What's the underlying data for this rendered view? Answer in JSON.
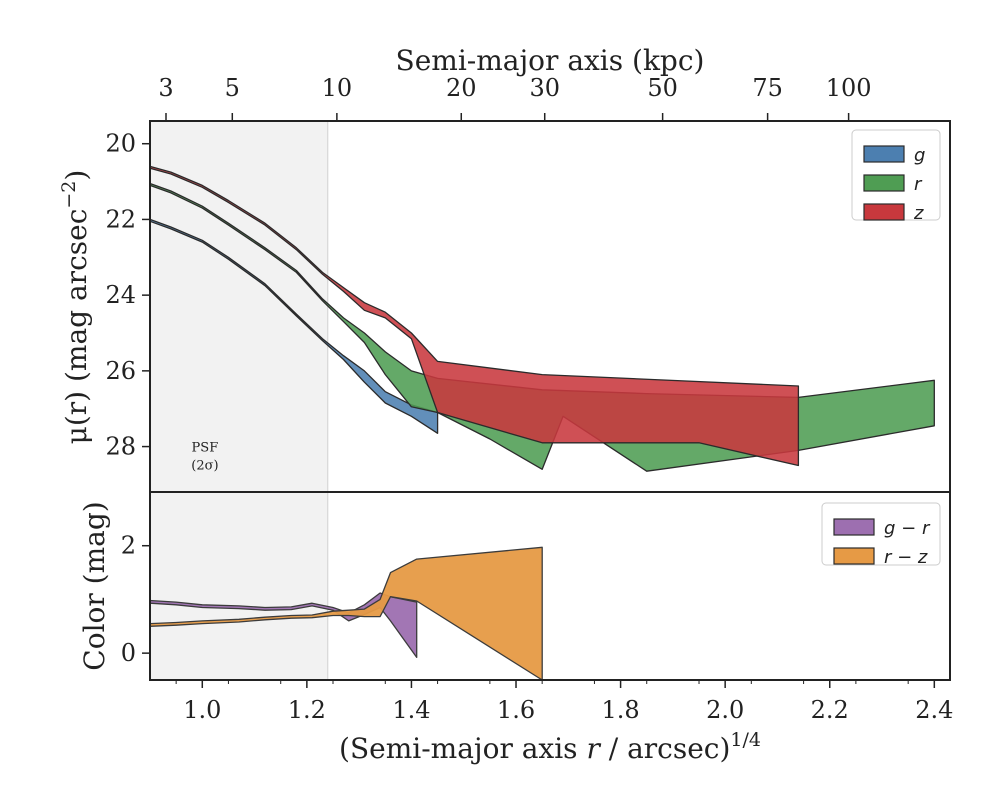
{
  "chart_data": [
    {
      "type": "area",
      "panel": "surface-brightness",
      "top_xlabel": "Semi-major axis (kpc)",
      "top_ticks": [
        {
          "label": "3",
          "x": 0.9306
        },
        {
          "label": "5",
          "x": 1.0574
        },
        {
          "label": "10",
          "x": 1.2574
        },
        {
          "label": "20",
          "x": 1.4953
        },
        {
          "label": "30",
          "x": 1.6549
        },
        {
          "label": "50",
          "x": 1.8804
        },
        {
          "label": "75",
          "x": 2.0812
        },
        {
          "label": "100",
          "x": 2.2361
        }
      ],
      "ylabel_main": "μ(r) (mag arcsec",
      "ylabel_sup": "−2",
      "ylabel_tail": ")",
      "xlim": [
        0.9,
        2.43
      ],
      "ylim": [
        29.2,
        19.4
      ],
      "yticks": [
        20,
        22,
        24,
        26,
        28
      ],
      "psf_shading": {
        "xmin": 0.9,
        "xmax": 1.24,
        "color": "#f2f2f2"
      },
      "annotation": {
        "line1": "PSF",
        "line2": "(2σ)",
        "x": 1.005,
        "y": 28.4
      },
      "legend": {
        "placement": "top-right",
        "entries": [
          {
            "label": "g",
            "color": "#4c7fb0"
          },
          {
            "label": "r",
            "color": "#4f9d53"
          },
          {
            "label": "z",
            "color": "#c8383d"
          }
        ]
      },
      "series": [
        {
          "name": "g",
          "color": "#4c7fb0",
          "upper": [
            [
              0.9,
              22.0
            ],
            [
              0.94,
              22.2
            ],
            [
              1.0,
              22.55
            ],
            [
              1.05,
              23.0
            ],
            [
              1.12,
              23.7
            ],
            [
              1.18,
              24.5
            ],
            [
              1.23,
              25.15
            ],
            [
              1.27,
              25.6
            ],
            [
              1.31,
              26.0
            ],
            [
              1.35,
              26.55
            ],
            [
              1.4,
              26.9
            ],
            [
              1.45,
              27.1
            ]
          ],
          "lower": [
            [
              0.9,
              22.05
            ],
            [
              0.94,
              22.25
            ],
            [
              1.0,
              22.6
            ],
            [
              1.05,
              23.05
            ],
            [
              1.12,
              23.75
            ],
            [
              1.18,
              24.55
            ],
            [
              1.23,
              25.2
            ],
            [
              1.27,
              25.7
            ],
            [
              1.31,
              26.3
            ],
            [
              1.35,
              26.85
            ],
            [
              1.4,
              27.2
            ],
            [
              1.45,
              27.65
            ]
          ]
        },
        {
          "name": "r",
          "color": "#4f9d53",
          "upper": [
            [
              0.9,
              21.05
            ],
            [
              0.94,
              21.25
            ],
            [
              1.0,
              21.65
            ],
            [
              1.05,
              22.1
            ],
            [
              1.12,
              22.75
            ],
            [
              1.18,
              23.35
            ],
            [
              1.23,
              24.1
            ],
            [
              1.27,
              24.6
            ],
            [
              1.31,
              25.0
            ],
            [
              1.35,
              25.5
            ],
            [
              1.4,
              26.0
            ],
            [
              1.45,
              26.2
            ],
            [
              1.65,
              26.5
            ],
            [
              1.85,
              26.6
            ],
            [
              2.14,
              26.7
            ],
            [
              2.4,
              26.25
            ]
          ],
          "lower": [
            [
              0.9,
              21.1
            ],
            [
              0.94,
              21.3
            ],
            [
              1.0,
              21.7
            ],
            [
              1.05,
              22.15
            ],
            [
              1.12,
              22.8
            ],
            [
              1.18,
              23.4
            ],
            [
              1.23,
              24.15
            ],
            [
              1.27,
              24.7
            ],
            [
              1.31,
              25.25
            ],
            [
              1.35,
              26.1
            ],
            [
              1.4,
              26.95
            ],
            [
              1.45,
              27.1
            ],
            [
              1.55,
              27.8
            ],
            [
              1.65,
              28.6
            ],
            [
              1.69,
              27.2
            ],
            [
              1.85,
              28.65
            ],
            [
              2.14,
              28.1
            ],
            [
              2.4,
              27.45
            ]
          ]
        },
        {
          "name": "z",
          "color": "#c8383d",
          "upper": [
            [
              0.9,
              20.6
            ],
            [
              0.94,
              20.75
            ],
            [
              1.0,
              21.1
            ],
            [
              1.05,
              21.5
            ],
            [
              1.12,
              22.1
            ],
            [
              1.18,
              22.75
            ],
            [
              1.23,
              23.4
            ],
            [
              1.27,
              23.8
            ],
            [
              1.31,
              24.2
            ],
            [
              1.35,
              24.45
            ],
            [
              1.4,
              25.0
            ],
            [
              1.45,
              25.75
            ],
            [
              1.65,
              26.1
            ],
            [
              2.14,
              26.4
            ]
          ],
          "lower": [
            [
              0.9,
              20.65
            ],
            [
              0.94,
              20.8
            ],
            [
              1.0,
              21.15
            ],
            [
              1.05,
              21.55
            ],
            [
              1.12,
              22.15
            ],
            [
              1.18,
              22.8
            ],
            [
              1.23,
              23.45
            ],
            [
              1.27,
              23.9
            ],
            [
              1.31,
              24.4
            ],
            [
              1.35,
              24.6
            ],
            [
              1.4,
              25.15
            ],
            [
              1.45,
              27.1
            ],
            [
              1.65,
              27.9
            ],
            [
              1.69,
              27.9
            ],
            [
              1.95,
              27.9
            ],
            [
              2.14,
              28.5
            ]
          ]
        }
      ]
    },
    {
      "type": "area",
      "panel": "color",
      "xlabel_main": "(Semi-major axis ",
      "xlabel_r": "r",
      "xlabel_tail": " / arcsec)",
      "xlabel_sup": "1/4",
      "ylabel": "Color (mag)",
      "xlim": [
        0.9,
        2.43
      ],
      "ylim": [
        -0.5,
        3.0
      ],
      "yticks": [
        0,
        2
      ],
      "xticks": [
        1.0,
        1.2,
        1.4,
        1.6,
        1.8,
        2.0,
        2.2,
        2.4
      ],
      "xtick_labels": [
        "1.0",
        "1.2",
        "1.4",
        "1.6",
        "1.8",
        "2.0",
        "2.2",
        "2.4"
      ],
      "legend": {
        "placement": "top-right",
        "entries": [
          {
            "label": "g − r",
            "color": "#9d6fb0"
          },
          {
            "label": "r − z",
            "color": "#e69a45"
          }
        ]
      },
      "series": [
        {
          "name": "g − r",
          "color": "#9d6fb0",
          "upper": [
            [
              0.9,
              0.98
            ],
            [
              0.95,
              0.95
            ],
            [
              1.0,
              0.9
            ],
            [
              1.07,
              0.88
            ],
            [
              1.12,
              0.85
            ],
            [
              1.17,
              0.86
            ],
            [
              1.21,
              0.93
            ],
            [
              1.25,
              0.85
            ],
            [
              1.28,
              0.75
            ],
            [
              1.31,
              0.9
            ],
            [
              1.34,
              1.12
            ],
            [
              1.36,
              1.05
            ],
            [
              1.41,
              0.95
            ]
          ],
          "lower": [
            [
              0.9,
              0.93
            ],
            [
              0.95,
              0.9
            ],
            [
              1.0,
              0.85
            ],
            [
              1.07,
              0.83
            ],
            [
              1.12,
              0.8
            ],
            [
              1.17,
              0.81
            ],
            [
              1.21,
              0.88
            ],
            [
              1.25,
              0.8
            ],
            [
              1.28,
              0.6
            ],
            [
              1.31,
              0.72
            ],
            [
              1.34,
              0.85
            ],
            [
              1.36,
              0.6
            ],
            [
              1.41,
              -0.08
            ]
          ]
        },
        {
          "name": "r − z",
          "color": "#e69a45",
          "upper": [
            [
              0.9,
              0.55
            ],
            [
              0.95,
              0.57
            ],
            [
              1.0,
              0.6
            ],
            [
              1.07,
              0.63
            ],
            [
              1.12,
              0.67
            ],
            [
              1.17,
              0.7
            ],
            [
              1.21,
              0.71
            ],
            [
              1.25,
              0.78
            ],
            [
              1.28,
              0.8
            ],
            [
              1.31,
              0.82
            ],
            [
              1.34,
              1.0
            ],
            [
              1.36,
              1.5
            ],
            [
              1.41,
              1.75
            ],
            [
              1.65,
              1.97
            ]
          ],
          "lower": [
            [
              0.9,
              0.5
            ],
            [
              0.95,
              0.52
            ],
            [
              1.0,
              0.55
            ],
            [
              1.07,
              0.58
            ],
            [
              1.12,
              0.62
            ],
            [
              1.17,
              0.65
            ],
            [
              1.21,
              0.66
            ],
            [
              1.25,
              0.7
            ],
            [
              1.28,
              0.7
            ],
            [
              1.31,
              0.68
            ],
            [
              1.34,
              0.68
            ],
            [
              1.36,
              1.05
            ],
            [
              1.41,
              0.97
            ],
            [
              1.65,
              -0.5
            ]
          ]
        }
      ]
    }
  ]
}
